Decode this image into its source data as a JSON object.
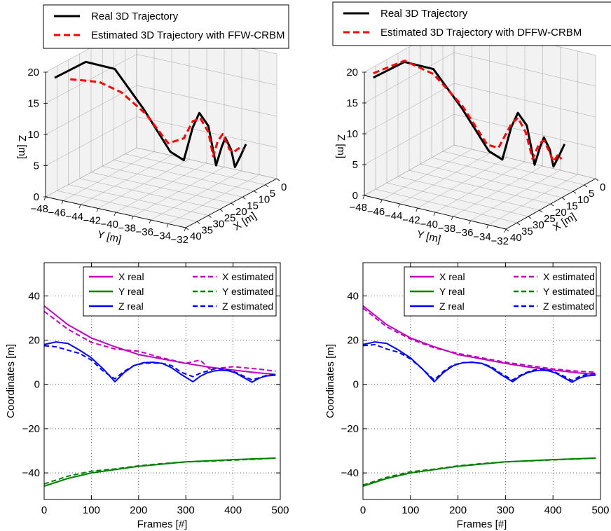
{
  "colors": {
    "real_3d": "#000000",
    "estimated_3d": "#ff0000",
    "x_series": "#bf00bf",
    "y_series": "#008000",
    "z_series": "#0000ff",
    "grid": "#9a9a9a",
    "pane": "#f2f2f2"
  },
  "chart_data": [
    {
      "type": "line",
      "panel": "top-left",
      "projection": "3d",
      "legend": [
        "Real 3D Trajectory",
        "Estimated 3D Trajectory with FFW-CRBM"
      ],
      "legend_placement": "top",
      "zlabel": "Z [m]",
      "ylabel": "Y [m]",
      "xlabel": "X [m]",
      "zticks": [
        "0",
        "5",
        "10",
        "15",
        "20"
      ],
      "yticks": [
        "−48",
        "−46",
        "−44",
        "−42",
        "−40",
        "−38",
        "−36",
        "−34",
        "−32"
      ],
      "xticks": [
        "40",
        "35",
        "30",
        "25",
        "20",
        "15",
        "10",
        "5",
        "0"
      ],
      "zlim": [
        0,
        20
      ],
      "ylim": [
        -48,
        -32
      ],
      "xlim": [
        0,
        40
      ],
      "grid": true,
      "series": [
        {
          "name": "Real 3D Trajectory",
          "style": "solid",
          "points": [
            [
              36,
              -48,
              18.3
            ],
            [
              30,
              -46,
              20.3
            ],
            [
              25,
              -44,
              18.8
            ],
            [
              20,
              -42,
              12.0
            ],
            [
              16,
              -40,
              5.0
            ],
            [
              12,
              -39.5,
              3.0
            ],
            [
              10,
              -39,
              8.0
            ],
            [
              9,
              -38.5,
              10.3
            ],
            [
              7,
              -38,
              8.0
            ],
            [
              5.5,
              -37.5,
              1.5
            ],
            [
              5,
              -37,
              4.5
            ],
            [
              4.5,
              -36.7,
              6.0
            ],
            [
              3.5,
              -36.3,
              4.0
            ],
            [
              3,
              -36,
              1.2
            ],
            [
              2.5,
              -35.5,
              3.0
            ],
            [
              2,
              -35,
              5.0
            ]
          ]
        },
        {
          "name": "Estimated 3D Trajectory with FFW-CRBM",
          "style": "dashed",
          "points": [
            [
              33,
              -47,
              17.8
            ],
            [
              28,
              -45,
              17.0
            ],
            [
              24,
              -43.5,
              15.0
            ],
            [
              19,
              -42,
              11.0
            ],
            [
              15,
              -40.5,
              6.0
            ],
            [
              12,
              -39.5,
              6.5
            ],
            [
              10,
              -39,
              9.0
            ],
            [
              8.5,
              -38.5,
              9.3
            ],
            [
              7,
              -38,
              7.0
            ],
            [
              6,
              -37.7,
              3.0
            ],
            [
              5.5,
              -37.3,
              5.5
            ],
            [
              4.5,
              -37,
              6.5
            ],
            [
              3.5,
              -36.5,
              4.0
            ],
            [
              3,
              -36.2,
              3.5
            ],
            [
              2.5,
              -35.7,
              4.2
            ],
            [
              2,
              -35.2,
              4.0
            ]
          ]
        }
      ]
    },
    {
      "type": "line",
      "panel": "top-right",
      "projection": "3d",
      "legend": [
        "Real 3D Trajectory",
        "Estimated 3D Trajectory with DFFW-CRBM"
      ],
      "legend_placement": "top",
      "zlabel": "Z [m]",
      "ylabel": "Y [m]",
      "xlabel": "X [m]",
      "zticks": [
        "0",
        "5",
        "10",
        "15",
        "20"
      ],
      "yticks": [
        "−48",
        "−46",
        "−44",
        "−42",
        "−40",
        "−38",
        "−36",
        "−34",
        "−32"
      ],
      "xticks": [
        "40",
        "35",
        "30",
        "25",
        "20",
        "15",
        "10",
        "5",
        "0"
      ],
      "zlim": [
        0,
        20
      ],
      "ylim": [
        -48,
        -32
      ],
      "xlim": [
        0,
        40
      ],
      "grid": true,
      "series": [
        {
          "name": "Real 3D Trajectory",
          "style": "solid",
          "points": [
            [
              36,
              -48,
              18.3
            ],
            [
              30,
              -46,
              20.3
            ],
            [
              25,
              -44,
              18.8
            ],
            [
              20,
              -42,
              12.0
            ],
            [
              16,
              -40,
              5.0
            ],
            [
              12,
              -39.5,
              3.0
            ],
            [
              10,
              -39,
              8.0
            ],
            [
              9,
              -38.5,
              10.3
            ],
            [
              7,
              -38,
              8.0
            ],
            [
              5.5,
              -37.5,
              1.5
            ],
            [
              5,
              -37,
              4.5
            ],
            [
              4.5,
              -36.7,
              6.0
            ],
            [
              3.5,
              -36.3,
              4.0
            ],
            [
              3,
              -36,
              1.2
            ],
            [
              2.5,
              -35.5,
              3.0
            ],
            [
              2,
              -35,
              5.0
            ]
          ]
        },
        {
          "name": "Estimated 3D Trajectory with DFFW-CRBM",
          "style": "dashed",
          "points": [
            [
              36,
              -48,
              19.0
            ],
            [
              30,
              -46,
              20.5
            ],
            [
              25,
              -44,
              18.0
            ],
            [
              20,
              -42,
              12.5
            ],
            [
              16,
              -40.2,
              6.0
            ],
            [
              13,
              -39.7,
              5.0
            ],
            [
              10,
              -39,
              8.5
            ],
            [
              9,
              -38.5,
              9.5
            ],
            [
              7.5,
              -38,
              7.0
            ],
            [
              6,
              -37.6,
              2.5
            ],
            [
              5,
              -37.1,
              5.0
            ],
            [
              4.5,
              -36.7,
              5.5
            ],
            [
              3.5,
              -36.3,
              3.5
            ],
            [
              3,
              -36,
              2.0
            ],
            [
              2.5,
              -35.6,
              3.2
            ],
            [
              2.2,
              -35.3,
              2.5
            ]
          ]
        }
      ]
    },
    {
      "type": "line",
      "panel": "bottom-left",
      "xlabel": "Frames [#]",
      "ylabel": "Coordinates [m]",
      "xlim": [
        0,
        500
      ],
      "ylim": [
        -52,
        55
      ],
      "xticks": [
        "0",
        "100",
        "200",
        "300",
        "400",
        "500"
      ],
      "yticks": [
        "−40",
        "−20",
        "0",
        "20",
        "40"
      ],
      "legend_placement": "top-right",
      "grid": true,
      "series": [
        {
          "name": "X real",
          "color": "x_series",
          "style": "solid",
          "x": [
            0,
            50,
            100,
            150,
            200,
            250,
            300,
            350,
            400,
            450,
            490
          ],
          "y": [
            35.5,
            27,
            21,
            17,
            13.5,
            11.5,
            9.5,
            7.8,
            6.5,
            5.3,
            4.5
          ]
        },
        {
          "name": "X estimated",
          "color": "x_series",
          "style": "dashed",
          "x": [
            0,
            50,
            100,
            150,
            200,
            250,
            300,
            330,
            350,
            400,
            450,
            490
          ],
          "y": [
            33,
            25,
            19,
            16,
            15,
            12,
            9.5,
            11,
            7,
            8,
            7,
            6
          ]
        },
        {
          "name": "Y real",
          "color": "y_series",
          "style": "solid",
          "x": [
            0,
            50,
            100,
            150,
            200,
            250,
            300,
            350,
            400,
            450,
            490
          ],
          "y": [
            -46,
            -42.5,
            -40,
            -38.5,
            -37,
            -36,
            -35,
            -34.5,
            -34,
            -33.6,
            -33.3
          ]
        },
        {
          "name": "Y estimated",
          "color": "y_series",
          "style": "dashed",
          "x": [
            0,
            50,
            100,
            150,
            200,
            250,
            300,
            350,
            400,
            450,
            490
          ],
          "y": [
            -45,
            -41.5,
            -39.2,
            -38.2,
            -36.8,
            -35.8,
            -35,
            -34.7,
            -34.2,
            -33.8,
            -33.3
          ]
        },
        {
          "name": "Z real",
          "color": "z_series",
          "style": "solid",
          "x": [
            0,
            25,
            50,
            75,
            100,
            125,
            150,
            170,
            190,
            210,
            230,
            250,
            270,
            290,
            315,
            330,
            345,
            360,
            375,
            390,
            405,
            420,
            440,
            455,
            470,
            490
          ],
          "y": [
            18,
            19.2,
            18.5,
            15.5,
            12,
            7,
            1.2,
            5.5,
            8.5,
            9.8,
            10,
            9.5,
            7.5,
            4.5,
            1.2,
            3.6,
            5.2,
            6.1,
            6.4,
            6.2,
            5.2,
            3.4,
            1.0,
            2.8,
            3.8,
            4.2
          ]
        },
        {
          "name": "Z estimated",
          "color": "z_series",
          "style": "dashed",
          "x": [
            0,
            25,
            50,
            75,
            100,
            125,
            150,
            170,
            190,
            210,
            230,
            250,
            270,
            290,
            315,
            330,
            345,
            360,
            375,
            390,
            405,
            420,
            440,
            455,
            470,
            490
          ],
          "y": [
            17.5,
            17,
            15.5,
            14,
            11,
            6,
            2.5,
            6,
            8.5,
            9.5,
            9.7,
            9.5,
            8.5,
            5.5,
            3.5,
            5,
            6,
            7,
            7,
            6.5,
            5.5,
            4,
            2,
            3,
            4,
            4.5
          ]
        }
      ]
    },
    {
      "type": "line",
      "panel": "bottom-right",
      "xlabel": "Frames [#]",
      "ylabel": "Coordinates [m]",
      "xlim": [
        0,
        500
      ],
      "ylim": [
        -52,
        55
      ],
      "xticks": [
        "0",
        "100",
        "200",
        "300",
        "400",
        "500"
      ],
      "yticks": [
        "−40",
        "−20",
        "0",
        "20",
        "40"
      ],
      "legend_placement": "top-right",
      "grid": true,
      "series": [
        {
          "name": "X real",
          "color": "x_series",
          "style": "solid",
          "x": [
            0,
            50,
            100,
            150,
            200,
            250,
            300,
            350,
            400,
            450,
            490
          ],
          "y": [
            35.5,
            27,
            21,
            17,
            13.5,
            11.5,
            9.5,
            7.8,
            6.5,
            5.3,
            4.5
          ]
        },
        {
          "name": "X estimated",
          "color": "x_series",
          "style": "dashed",
          "x": [
            0,
            50,
            100,
            150,
            200,
            250,
            300,
            350,
            400,
            450,
            490
          ],
          "y": [
            34.5,
            26,
            20.5,
            16.5,
            14,
            12,
            10,
            8.5,
            7,
            6,
            5.5
          ]
        },
        {
          "name": "Y real",
          "color": "y_series",
          "style": "solid",
          "x": [
            0,
            50,
            100,
            150,
            200,
            250,
            300,
            350,
            400,
            450,
            490
          ],
          "y": [
            -46,
            -42.5,
            -40,
            -38.5,
            -37,
            -36,
            -35,
            -34.5,
            -34,
            -33.6,
            -33.3
          ]
        },
        {
          "name": "Y estimated",
          "color": "y_series",
          "style": "dashed",
          "x": [
            0,
            50,
            100,
            150,
            200,
            250,
            300,
            350,
            400,
            450,
            490
          ],
          "y": [
            -45.5,
            -42,
            -39.5,
            -38.3,
            -36.8,
            -35.8,
            -35,
            -34.6,
            -34.1,
            -33.7,
            -33.3
          ]
        },
        {
          "name": "Z real",
          "color": "z_series",
          "style": "solid",
          "x": [
            0,
            25,
            50,
            75,
            100,
            125,
            150,
            170,
            190,
            210,
            230,
            250,
            270,
            290,
            315,
            330,
            345,
            360,
            375,
            390,
            405,
            420,
            440,
            455,
            470,
            490
          ],
          "y": [
            18,
            19.2,
            18.5,
            15.5,
            12,
            7,
            1.2,
            5.5,
            8.5,
            9.8,
            10,
            9.5,
            7.5,
            4.5,
            1.2,
            3.6,
            5.2,
            6.1,
            6.4,
            6.2,
            5.2,
            3.4,
            1.0,
            2.8,
            3.8,
            4.2
          ]
        },
        {
          "name": "Z estimated",
          "color": "z_series",
          "style": "dashed",
          "x": [
            0,
            25,
            50,
            75,
            100,
            125,
            150,
            170,
            190,
            210,
            230,
            250,
            270,
            290,
            315,
            330,
            345,
            360,
            375,
            390,
            405,
            420,
            440,
            455,
            470,
            490
          ],
          "y": [
            17.5,
            18,
            16,
            14.5,
            11.5,
            7,
            2,
            6,
            8.8,
            9.8,
            10,
            9.5,
            8,
            5,
            2,
            4,
            5.5,
            6.5,
            7,
            6.5,
            5.5,
            4,
            1.8,
            3.5,
            4.5,
            5
          ]
        }
      ]
    }
  ]
}
